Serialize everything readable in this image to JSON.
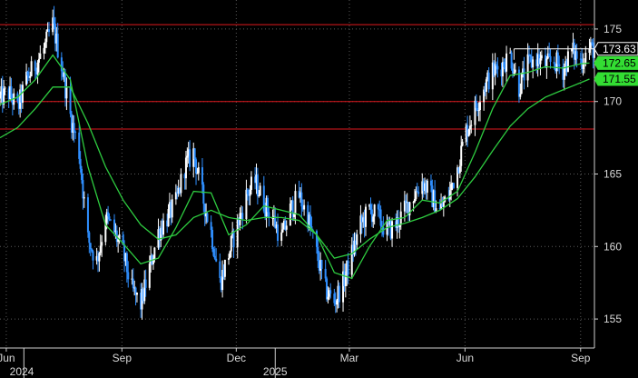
{
  "chart_data": {
    "type": "candlestick",
    "grid": true,
    "x_range": [
      "2024-05-27",
      "2025-09-12"
    ],
    "y_range": [
      153,
      177
    ],
    "x_ticks": [
      {
        "date": "2024-06-01",
        "label": "Jun"
      },
      {
        "date": "2024-09-01",
        "label": "Sep"
      },
      {
        "date": "2024-12-01",
        "label": "Dec"
      },
      {
        "date": "2025-03-01",
        "label": "Mar"
      },
      {
        "date": "2025-06-01",
        "label": "Jun"
      },
      {
        "date": "2025-09-01",
        "label": "Sep"
      }
    ],
    "x_years": [
      {
        "date": "2024-06-01",
        "label": "2024"
      },
      {
        "date": "2025-01-01",
        "label": "2025"
      }
    ],
    "year_separators": [
      "2024-06-15",
      "2025-01-01"
    ],
    "y_ticks": [
      155,
      160,
      165,
      170,
      175
    ],
    "horizontal_levels": [
      {
        "value": 175.3,
        "color": "#e0191e"
      },
      {
        "value": 170.0,
        "color": "#e0191e"
      },
      {
        "value": 168.1,
        "color": "#e0191e"
      }
    ],
    "last_price_bracket": {
      "from": "2025-07-10",
      "value": 173.63,
      "color": "#ffffff"
    },
    "price_path": [
      [
        "2024-05-27",
        170.2
      ],
      [
        "2024-06-03",
        170.6
      ],
      [
        "2024-06-10",
        169.5
      ],
      [
        "2024-06-17",
        171.5
      ],
      [
        "2024-06-24",
        172.5
      ],
      [
        "2024-07-01",
        173.6
      ],
      [
        "2024-07-08",
        175.3
      ],
      [
        "2024-07-15",
        172.5
      ],
      [
        "2024-07-22",
        169.0
      ],
      [
        "2024-07-29",
        166.5
      ],
      [
        "2024-08-05",
        160.5
      ],
      [
        "2024-08-12",
        159.0
      ],
      [
        "2024-08-19",
        162.0
      ],
      [
        "2024-08-26",
        161.0
      ],
      [
        "2024-09-02",
        159.5
      ],
      [
        "2024-09-09",
        157.0
      ],
      [
        "2024-09-16",
        156.0
      ],
      [
        "2024-09-23",
        158.5
      ],
      [
        "2024-09-30",
        161.0
      ],
      [
        "2024-10-07",
        162.0
      ],
      [
        "2024-10-14",
        163.0
      ],
      [
        "2024-10-21",
        165.5
      ],
      [
        "2024-10-28",
        166.5
      ],
      [
        "2024-11-04",
        163.5
      ],
      [
        "2024-11-11",
        161.0
      ],
      [
        "2024-11-18",
        157.5
      ],
      [
        "2024-11-25",
        159.5
      ],
      [
        "2024-12-02",
        161.5
      ],
      [
        "2024-12-09",
        163.5
      ],
      [
        "2024-12-16",
        164.5
      ],
      [
        "2024-12-23",
        163.0
      ],
      [
        "2024-12-30",
        162.0
      ],
      [
        "2025-01-06",
        160.5
      ],
      [
        "2025-01-13",
        162.5
      ],
      [
        "2025-01-20",
        163.5
      ],
      [
        "2025-01-27",
        162.0
      ],
      [
        "2025-02-03",
        159.5
      ],
      [
        "2025-02-10",
        157.0
      ],
      [
        "2025-02-17",
        156.2
      ],
      [
        "2025-02-24",
        157.5
      ],
      [
        "2025-03-03",
        159.5
      ],
      [
        "2025-03-10",
        161.5
      ],
      [
        "2025-03-17",
        162.5
      ],
      [
        "2025-03-24",
        162.0
      ],
      [
        "2025-03-31",
        161.0
      ],
      [
        "2025-04-07",
        161.5
      ],
      [
        "2025-04-14",
        162.5
      ],
      [
        "2025-04-21",
        163.5
      ],
      [
        "2025-04-28",
        164.5
      ],
      [
        "2025-05-05",
        163.5
      ],
      [
        "2025-05-12",
        162.5
      ],
      [
        "2025-05-19",
        163.5
      ],
      [
        "2025-05-26",
        165.5
      ],
      [
        "2025-06-02",
        168.0
      ],
      [
        "2025-06-09",
        169.5
      ],
      [
        "2025-06-16",
        171.0
      ],
      [
        "2025-06-23",
        172.0
      ],
      [
        "2025-06-30",
        172.5
      ],
      [
        "2025-07-07",
        173.2
      ],
      [
        "2025-07-14",
        171.0
      ],
      [
        "2025-07-21",
        172.5
      ],
      [
        "2025-07-28",
        173.0
      ],
      [
        "2025-08-04",
        172.5
      ],
      [
        "2025-08-11",
        172.8
      ],
      [
        "2025-08-18",
        172.2
      ],
      [
        "2025-08-25",
        173.5
      ],
      [
        "2025-09-01",
        172.8
      ],
      [
        "2025-09-08",
        173.63
      ]
    ],
    "series": [
      {
        "name": "",
        "color": "#2ecc40",
        "values": [
          [
            "2024-05-27",
            167.5
          ],
          [
            "2024-06-10",
            168.2
          ],
          [
            "2024-06-24",
            169.5
          ],
          [
            "2024-07-08",
            171.0
          ],
          [
            "2024-07-22",
            171.0
          ],
          [
            "2024-08-05",
            168.5
          ],
          [
            "2024-08-19",
            165.5
          ],
          [
            "2024-09-02",
            163.2
          ],
          [
            "2024-09-16",
            161.5
          ],
          [
            "2024-09-30",
            160.5
          ],
          [
            "2024-10-14",
            160.8
          ],
          [
            "2024-10-28",
            162.0
          ],
          [
            "2024-11-11",
            162.5
          ],
          [
            "2024-11-25",
            162.0
          ],
          [
            "2024-12-09",
            161.8
          ],
          [
            "2024-12-23",
            162.0
          ],
          [
            "2025-01-06",
            162.0
          ],
          [
            "2025-01-20",
            161.8
          ],
          [
            "2025-02-03",
            160.8
          ],
          [
            "2025-02-17",
            159.2
          ],
          [
            "2025-03-03",
            159.5
          ],
          [
            "2025-03-17",
            160.5
          ],
          [
            "2025-03-31",
            161.3
          ],
          [
            "2025-04-14",
            161.6
          ],
          [
            "2025-04-28",
            162.0
          ],
          [
            "2025-05-12",
            162.5
          ],
          [
            "2025-05-26",
            163.3
          ],
          [
            "2025-06-09",
            164.8
          ],
          [
            "2025-06-23",
            166.6
          ],
          [
            "2025-07-07",
            168.3
          ],
          [
            "2025-07-21",
            169.5
          ],
          [
            "2025-08-04",
            170.3
          ],
          [
            "2025-08-18",
            170.8
          ],
          [
            "2025-09-01",
            171.3
          ],
          [
            "2025-09-08",
            171.55
          ]
        ],
        "flag_label": "171.55"
      },
      {
        "name": "",
        "color": "#2ecc40",
        "values": [
          [
            "2024-05-27",
            169.8
          ],
          [
            "2024-06-10",
            170.3
          ],
          [
            "2024-06-24",
            171.5
          ],
          [
            "2024-07-08",
            173.2
          ],
          [
            "2024-07-22",
            171.5
          ],
          [
            "2024-08-05",
            165.5
          ],
          [
            "2024-08-19",
            161.5
          ],
          [
            "2024-09-02",
            160.2
          ],
          [
            "2024-09-16",
            158.8
          ],
          [
            "2024-09-30",
            159.2
          ],
          [
            "2024-10-14",
            161.3
          ],
          [
            "2024-10-28",
            163.8
          ],
          [
            "2024-11-11",
            163.7
          ],
          [
            "2024-11-25",
            160.8
          ],
          [
            "2024-12-09",
            161.5
          ],
          [
            "2024-12-23",
            162.8
          ],
          [
            "2025-01-06",
            162.5
          ],
          [
            "2025-01-20",
            162.2
          ],
          [
            "2025-02-03",
            160.8
          ],
          [
            "2025-02-17",
            158.2
          ],
          [
            "2025-03-03",
            157.8
          ],
          [
            "2025-03-17",
            160.0
          ],
          [
            "2025-03-31",
            161.8
          ],
          [
            "2025-04-14",
            162.0
          ],
          [
            "2025-04-28",
            163.2
          ],
          [
            "2025-05-12",
            163.0
          ],
          [
            "2025-05-26",
            163.8
          ],
          [
            "2025-06-09",
            166.5
          ],
          [
            "2025-06-23",
            169.5
          ],
          [
            "2025-07-07",
            171.8
          ],
          [
            "2025-07-21",
            172.0
          ],
          [
            "2025-08-04",
            172.4
          ],
          [
            "2025-08-18",
            172.3
          ],
          [
            "2025-09-01",
            172.6
          ],
          [
            "2025-09-08",
            172.65
          ]
        ],
        "flag_label": "172.65"
      }
    ],
    "last_price_label": "173.63"
  },
  "colors": {
    "background": "#000000",
    "grid": "#5a5a5a",
    "axis_text": "#d9d9d9",
    "candle_up": "#ffffff",
    "candle_down": "#2f8fff",
    "ma": "#2ecc40",
    "ma_flag_bg": "#33dd33",
    "ma_flag_text": "#000000",
    "last_flag_bg": "#000000",
    "last_flag_text": "#ffffff",
    "level_line": "#e0191e"
  }
}
